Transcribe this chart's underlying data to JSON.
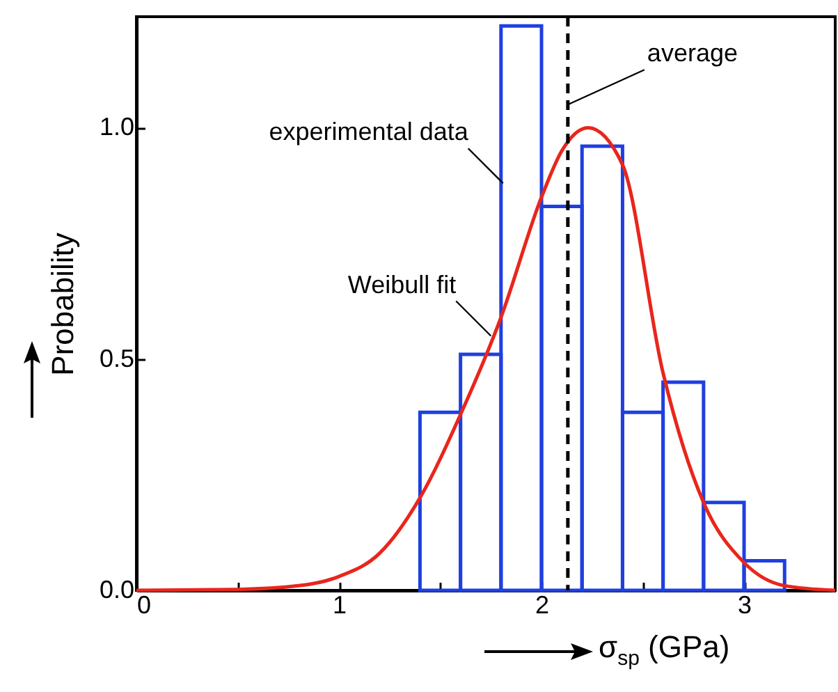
{
  "chart_data": {
    "type": "histogram",
    "xlabel": "σ$_{sp}$ (GPa)",
    "ylabel": "Probability",
    "bins": [
      1.4,
      1.6,
      1.8,
      2.0,
      2.2,
      2.4,
      2.6,
      2.8,
      3.0,
      3.2
    ],
    "values": [
      0.385,
      0.51,
      1.22,
      0.83,
      0.96,
      0.385,
      0.45,
      0.19,
      0.064
    ],
    "color": "#1f3fe0",
    "series": [
      {
        "type": "line",
        "color": "#e8261c",
        "x": [
          0,
          0.5,
          0.8,
          1.0,
          1.2,
          1.4,
          1.6,
          1.8,
          2.0,
          2.1,
          2.23,
          2.4,
          2.6,
          2.7,
          2.8,
          3.0,
          3.2,
          3.45
        ],
        "values": [
          0,
          0.002,
          0.01,
          0.03,
          0.08,
          0.2,
          0.38,
          0.59,
          0.85,
          0.95,
          1.0,
          0.92,
          0.47,
          0.31,
          0.19,
          0.06,
          0.01,
          0
        ]
      }
    ],
    "ref_lines": [
      {
        "axis": "x",
        "value": 2.13,
        "color": "#000000",
        "line_style": "dashed"
      }
    ],
    "annotations": [
      {
        "text": "experimental data",
        "x": 1.81,
        "y": 0.88
      },
      {
        "text": "Weibull fit",
        "x": 1.75,
        "y": 0.55
      },
      {
        "text": "average",
        "x": 2.13,
        "y": 1.05
      }
    ],
    "xlim": [
      0,
      3.45
    ],
    "ylim": [
      0,
      1.24
    ],
    "xticks": [
      0,
      {
        "value": 0.5,
        "label": null
      },
      1,
      {
        "value": 1.5,
        "label": null
      },
      2,
      {
        "value": 2.5,
        "label": null
      },
      3
    ],
    "yticks": [
      {
        "value": 0,
        "label": "0.0"
      },
      {
        "value": 0.5,
        "label": "0.5"
      },
      {
        "value": 1,
        "label": "1.0"
      }
    ],
    "grid": false
  }
}
